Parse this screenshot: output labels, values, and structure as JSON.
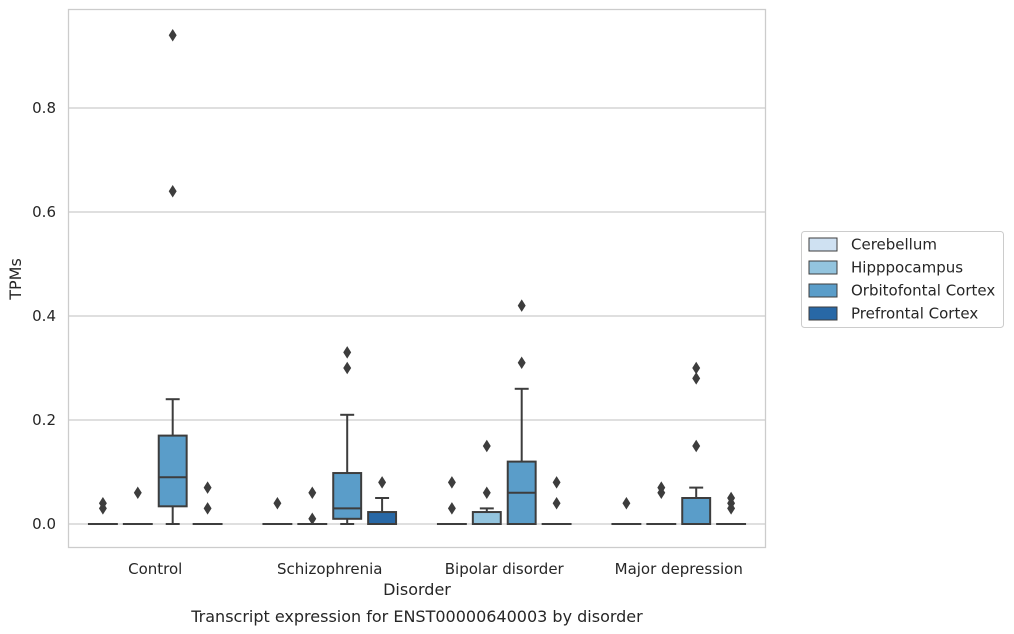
{
  "chart_data": {
    "type": "box",
    "title": "",
    "caption": "Transcript expression for ENST00000640003 by disorder",
    "xlabel": "Disorder",
    "ylabel": "TPMs",
    "ylim": [
      -0.045,
      0.99
    ],
    "yticks": [
      0.0,
      0.2,
      0.4,
      0.6,
      0.8
    ],
    "ytick_labels": [
      "0.0",
      "0.2",
      "0.4",
      "0.6",
      "0.8"
    ],
    "grid": "horizontal",
    "legend_position": "right",
    "categories": [
      "Control",
      "Schizophrenia",
      "Bipolar disorder",
      "Major depression"
    ],
    "series": [
      {
        "name": "Cerebellum",
        "color": "#cfe1f2",
        "boxes": [
          {
            "q1": 0,
            "median": 0,
            "q3": 0,
            "whisker_low": 0,
            "whisker_high": 0,
            "outliers": [
              0.03,
              0.04
            ]
          },
          {
            "q1": 0,
            "median": 0,
            "q3": 0,
            "whisker_low": 0,
            "whisker_high": 0,
            "outliers": [
              0.04
            ]
          },
          {
            "q1": 0,
            "median": 0,
            "q3": 0,
            "whisker_low": 0,
            "whisker_high": 0,
            "outliers": [
              0.03,
              0.08
            ]
          },
          {
            "q1": 0,
            "median": 0,
            "q3": 0,
            "whisker_low": 0,
            "whisker_high": 0,
            "outliers": [
              0.04
            ]
          }
        ]
      },
      {
        "name": "Hipppocampus",
        "color": "#93c4de",
        "boxes": [
          {
            "q1": 0,
            "median": 0,
            "q3": 0,
            "whisker_low": 0,
            "whisker_high": 0,
            "outliers": [
              0.06
            ]
          },
          {
            "q1": 0,
            "median": 0,
            "q3": 0,
            "whisker_low": 0,
            "whisker_high": 0,
            "outliers": [
              0.01,
              0.06
            ]
          },
          {
            "q1": 0,
            "median": 0,
            "q3": 0.023,
            "whisker_low": 0,
            "whisker_high": 0.03,
            "outliers": [
              0.06,
              0.15
            ]
          },
          {
            "q1": 0,
            "median": 0,
            "q3": 0,
            "whisker_low": 0,
            "whisker_high": 0,
            "outliers": [
              0.06,
              0.07
            ]
          }
        ]
      },
      {
        "name": "Orbitofontal Cortex",
        "color": "#5a9dc9",
        "boxes": [
          {
            "q1": 0.034,
            "median": 0.09,
            "q3": 0.17,
            "whisker_low": 0,
            "whisker_high": 0.24,
            "outliers": [
              0.64,
              0.94
            ]
          },
          {
            "q1": 0.01,
            "median": 0.03,
            "q3": 0.098,
            "whisker_low": 0,
            "whisker_high": 0.21,
            "outliers": [
              0.3,
              0.33
            ]
          },
          {
            "q1": 0,
            "median": 0.06,
            "q3": 0.12,
            "whisker_low": 0,
            "whisker_high": 0.26,
            "outliers": [
              0.31,
              0.42
            ]
          },
          {
            "q1": 0,
            "median": 0,
            "q3": 0.05,
            "whisker_low": 0,
            "whisker_high": 0.07,
            "outliers": [
              0.15,
              0.28,
              0.3
            ]
          }
        ]
      },
      {
        "name": "Prefrontal Cortex",
        "color": "#2868a6",
        "boxes": [
          {
            "q1": 0,
            "median": 0,
            "q3": 0,
            "whisker_low": 0,
            "whisker_high": 0,
            "outliers": [
              0.03,
              0.07
            ]
          },
          {
            "q1": 0,
            "median": 0,
            "q3": 0.023,
            "whisker_low": 0,
            "whisker_high": 0.05,
            "outliers": [
              0.08
            ]
          },
          {
            "q1": 0,
            "median": 0,
            "q3": 0,
            "whisker_low": 0,
            "whisker_high": 0,
            "outliers": [
              0.04,
              0.08
            ]
          },
          {
            "q1": 0,
            "median": 0,
            "q3": 0,
            "whisker_low": 0,
            "whisker_high": 0,
            "outliers": [
              0.03,
              0.04,
              0.05
            ]
          }
        ]
      }
    ]
  }
}
